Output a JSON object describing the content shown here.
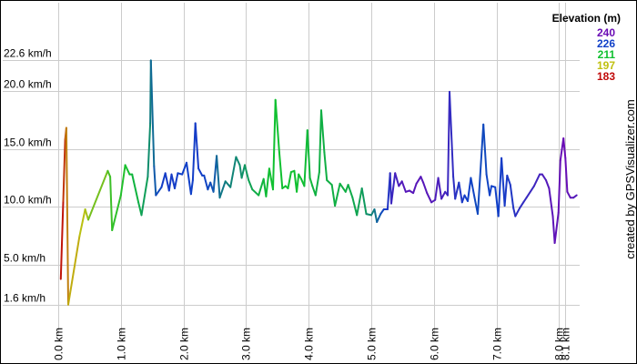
{
  "chart_data": {
    "type": "line",
    "title": "",
    "xlabel": "",
    "ylabel": "",
    "x_unit": "km",
    "y_unit": "km/h",
    "xlim": [
      0,
      8.27
    ],
    "ylim": [
      0.25,
      24.9
    ],
    "grid": true,
    "x_ticks": [
      {
        "value": 0.0,
        "label": "0.0 km"
      },
      {
        "value": 1.0,
        "label": "1.0 km"
      },
      {
        "value": 2.0,
        "label": "2.0 km"
      },
      {
        "value": 3.0,
        "label": "3.0 km"
      },
      {
        "value": 4.0,
        "label": "4.0 km"
      },
      {
        "value": 5.0,
        "label": "5.0 km"
      },
      {
        "value": 6.0,
        "label": "6.0 km"
      },
      {
        "value": 7.0,
        "label": "7.0 km"
      },
      {
        "value": 8.0,
        "label": "8.0 km"
      },
      {
        "value": 8.1,
        "label": "8.1 km"
      }
    ],
    "y_ticks": [
      {
        "value": 1.6,
        "label": "1.6 km/h"
      },
      {
        "value": 5.0,
        "label": "5.0 km/h"
      },
      {
        "value": 10.0,
        "label": "10.0 km/h"
      },
      {
        "value": 15.0,
        "label": "15.0 km/h"
      },
      {
        "value": 20.0,
        "label": "20.0 km/h"
      },
      {
        "value": 22.6,
        "label": "22.6 km/h"
      }
    ],
    "colorscale": {
      "title": "Elevation (m)",
      "placement": "top-right",
      "stops": [
        {
          "value": 240,
          "color": "#6a0cb5"
        },
        {
          "value": 226,
          "color": "#1040c8"
        },
        {
          "value": 211,
          "color": "#10c030"
        },
        {
          "value": 197,
          "color": "#c0c010"
        },
        {
          "value": 183,
          "color": "#c00808"
        }
      ]
    },
    "series": [
      {
        "points": [
          [
            0.04,
            3.8,
            183
          ],
          [
            0.08,
            10.5,
            185
          ],
          [
            0.11,
            15.8,
            188
          ],
          [
            0.13,
            16.8,
            190
          ],
          [
            0.16,
            1.6,
            194
          ],
          [
            0.34,
            7.5,
            197
          ],
          [
            0.43,
            9.8,
            198
          ],
          [
            0.48,
            8.9,
            200
          ],
          [
            0.79,
            13.1,
            206
          ],
          [
            0.83,
            12.6,
            207
          ],
          [
            0.86,
            8.0,
            208
          ],
          [
            1.0,
            11.0,
            209
          ],
          [
            1.07,
            13.6,
            210
          ],
          [
            1.14,
            12.8,
            211
          ],
          [
            1.18,
            12.8,
            212
          ],
          [
            1.28,
            10.4,
            213
          ],
          [
            1.33,
            9.3,
            214
          ],
          [
            1.43,
            12.6,
            216
          ],
          [
            1.47,
            17.2,
            218
          ],
          [
            1.48,
            22.6,
            220
          ],
          [
            1.53,
            13.5,
            222
          ],
          [
            1.56,
            11.0,
            224
          ],
          [
            1.65,
            11.7,
            226
          ],
          [
            1.71,
            12.9,
            227
          ],
          [
            1.77,
            11.4,
            227
          ],
          [
            1.81,
            12.8,
            227
          ],
          [
            1.86,
            11.6,
            227
          ],
          [
            1.91,
            12.9,
            226
          ],
          [
            1.98,
            12.8,
            226
          ],
          [
            2.05,
            13.8,
            226
          ],
          [
            2.12,
            11.1,
            226
          ],
          [
            2.15,
            12.3,
            226
          ],
          [
            2.19,
            17.2,
            227
          ],
          [
            2.24,
            13.3,
            227
          ],
          [
            2.3,
            12.7,
            226
          ],
          [
            2.33,
            12.7,
            226
          ],
          [
            2.39,
            11.5,
            225
          ],
          [
            2.43,
            12.1,
            225
          ],
          [
            2.48,
            11.3,
            224
          ],
          [
            2.53,
            14.4,
            222
          ],
          [
            2.58,
            10.8,
            220
          ],
          [
            2.67,
            12.2,
            219
          ],
          [
            2.75,
            11.7,
            218
          ],
          [
            2.84,
            14.3,
            218
          ],
          [
            2.9,
            13.6,
            217
          ],
          [
            2.93,
            12.5,
            217
          ],
          [
            2.98,
            13.6,
            216
          ],
          [
            3.04,
            12.3,
            215
          ],
          [
            3.1,
            11.5,
            214
          ],
          [
            3.2,
            11.0,
            213
          ],
          [
            3.28,
            12.4,
            212
          ],
          [
            3.32,
            10.9,
            212
          ],
          [
            3.37,
            13.3,
            211
          ],
          [
            3.43,
            11.5,
            211
          ],
          [
            3.47,
            19.2,
            211
          ],
          [
            3.53,
            14.7,
            211
          ],
          [
            3.58,
            11.6,
            211
          ],
          [
            3.63,
            11.8,
            211
          ],
          [
            3.67,
            11.6,
            211
          ],
          [
            3.72,
            13.0,
            211
          ],
          [
            3.77,
            13.1,
            211
          ],
          [
            3.81,
            11.3,
            211
          ],
          [
            3.84,
            12.8,
            211
          ],
          [
            3.88,
            12.4,
            211
          ],
          [
            3.93,
            11.8,
            211
          ],
          [
            3.98,
            16.6,
            212
          ],
          [
            4.02,
            12.5,
            212
          ],
          [
            4.06,
            11.8,
            212
          ],
          [
            4.11,
            11.0,
            213
          ],
          [
            4.17,
            13.0,
            213
          ],
          [
            4.2,
            18.3,
            213
          ],
          [
            4.25,
            14.7,
            213
          ],
          [
            4.29,
            12.3,
            213
          ],
          [
            4.37,
            11.9,
            213
          ],
          [
            4.42,
            10.1,
            213
          ],
          [
            4.5,
            12.0,
            213
          ],
          [
            4.59,
            11.3,
            213
          ],
          [
            4.63,
            11.9,
            213
          ],
          [
            4.7,
            10.8,
            214
          ],
          [
            4.77,
            9.3,
            214
          ],
          [
            4.85,
            11.6,
            215
          ],
          [
            4.92,
            9.4,
            216
          ],
          [
            5.0,
            9.3,
            218
          ],
          [
            5.05,
            9.8,
            219
          ],
          [
            5.09,
            8.7,
            221
          ],
          [
            5.15,
            9.4,
            224
          ],
          [
            5.2,
            9.8,
            226
          ],
          [
            5.26,
            9.8,
            228
          ],
          [
            5.3,
            12.9,
            230
          ],
          [
            5.32,
            10.3,
            232
          ],
          [
            5.38,
            12.9,
            234
          ],
          [
            5.44,
            11.8,
            235
          ],
          [
            5.49,
            12.2,
            236
          ],
          [
            5.55,
            11.3,
            237
          ],
          [
            5.61,
            11.4,
            237
          ],
          [
            5.67,
            11.2,
            237
          ],
          [
            5.72,
            12.0,
            237
          ],
          [
            5.79,
            12.6,
            237
          ],
          [
            5.83,
            12.1,
            237
          ],
          [
            5.89,
            11.2,
            237
          ],
          [
            5.96,
            10.4,
            237
          ],
          [
            6.02,
            10.6,
            236
          ],
          [
            6.07,
            12.5,
            235
          ],
          [
            6.12,
            10.7,
            235
          ],
          [
            6.18,
            11.3,
            234
          ],
          [
            6.22,
            11.0,
            233
          ],
          [
            6.25,
            19.9,
            232
          ],
          [
            6.31,
            12.6,
            231
          ],
          [
            6.34,
            10.7,
            230
          ],
          [
            6.4,
            12.1,
            229
          ],
          [
            6.45,
            10.4,
            228
          ],
          [
            6.49,
            11.0,
            227
          ],
          [
            6.54,
            10.5,
            226
          ],
          [
            6.59,
            12.5,
            226
          ],
          [
            6.65,
            10.8,
            225
          ],
          [
            6.7,
            9.4,
            225
          ],
          [
            6.79,
            17.1,
            225
          ],
          [
            6.84,
            12.8,
            225
          ],
          [
            6.89,
            11.0,
            226
          ],
          [
            6.92,
            11.8,
            226
          ],
          [
            6.98,
            11.7,
            226
          ],
          [
            7.03,
            9.2,
            226
          ],
          [
            7.08,
            14.2,
            227
          ],
          [
            7.13,
            10.1,
            227
          ],
          [
            7.17,
            12.7,
            228
          ],
          [
            7.22,
            11.9,
            228
          ],
          [
            7.27,
            9.9,
            229
          ],
          [
            7.3,
            9.2,
            230
          ],
          [
            7.37,
            9.9,
            231
          ],
          [
            7.43,
            10.4,
            231
          ],
          [
            7.48,
            10.8,
            232
          ],
          [
            7.6,
            11.8,
            233
          ],
          [
            7.69,
            12.8,
            234
          ],
          [
            7.73,
            12.8,
            235
          ],
          [
            7.79,
            12.3,
            236
          ],
          [
            7.84,
            11.6,
            237
          ],
          [
            7.9,
            9.2,
            238
          ],
          [
            7.93,
            6.9,
            238
          ],
          [
            7.99,
            9.5,
            239
          ],
          [
            8.02,
            14.0,
            239
          ],
          [
            8.07,
            15.9,
            240
          ],
          [
            8.1,
            14.2,
            240
          ],
          [
            8.13,
            11.3,
            239
          ],
          [
            8.18,
            10.8,
            238
          ],
          [
            8.23,
            10.8,
            237
          ],
          [
            8.28,
            11.0,
            236
          ]
        ]
      }
    ]
  },
  "credit": "created by GPSVisualizer.com"
}
